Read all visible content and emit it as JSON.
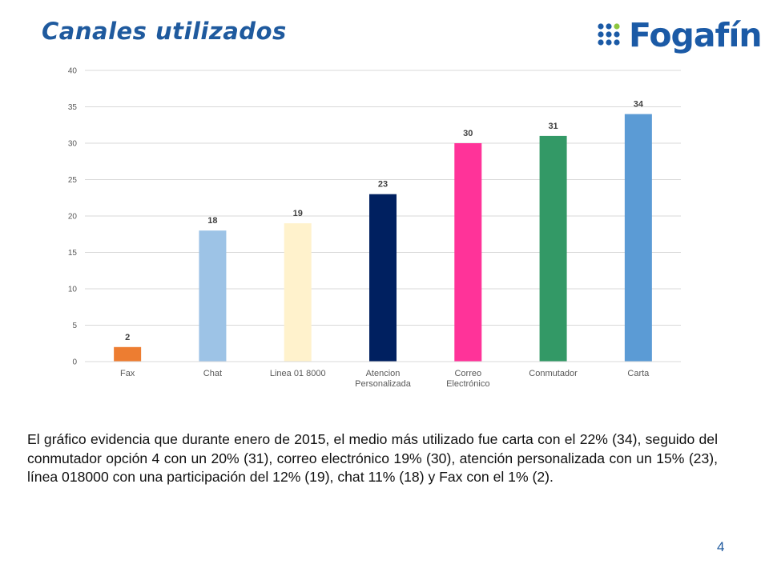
{
  "slide": {
    "title": "Canales utilizados",
    "logo_text": "Fogafín",
    "body": "El gráfico evidencia que durante enero de 2015, el medio más utilizado fue carta con el 22% (34), seguido del conmutador opción 4 con un 20% (31), correo electrónico 19% (30), atención personalizada con un 15% (23), línea 018000 con una participación del 12% (19), chat 11% (18) y Fax con el 1% (2).",
    "page_number": "4"
  },
  "colors": {
    "title": "#1f5a9e",
    "logo_blue": "#1b5aa6",
    "logo_green": "#8dc63f"
  },
  "chart_data": {
    "type": "bar",
    "title": "",
    "xlabel": "",
    "ylabel": "",
    "categories": [
      [
        "Fax"
      ],
      [
        "Chat"
      ],
      [
        "Linea 01 8000"
      ],
      [
        "Atencion",
        "Personalizada"
      ],
      [
        "Correo",
        "Electrónico"
      ],
      [
        "Conmutador"
      ],
      [
        "Carta"
      ]
    ],
    "values": [
      2,
      18,
      19,
      23,
      30,
      31,
      34
    ],
    "bar_colors": [
      "#ed7d31",
      "#9dc3e6",
      "#fff2cc",
      "#002060",
      "#ff3399",
      "#339966",
      "#5b9bd5"
    ],
    "ylim": [
      0,
      40
    ],
    "yticks": [
      0,
      5,
      10,
      15,
      20,
      25,
      30,
      35,
      40
    ],
    "grid": true,
    "legend": "none"
  }
}
